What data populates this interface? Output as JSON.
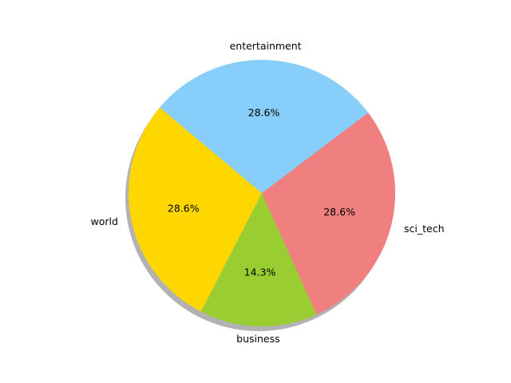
{
  "chart_data": {
    "type": "pie",
    "title": "",
    "categories": [
      "world",
      "business",
      "sci_tech",
      "entertainment"
    ],
    "values": [
      28.6,
      14.3,
      28.6,
      28.6
    ],
    "percent_labels": [
      "28.6%",
      "14.3%",
      "28.6%",
      "28.6%"
    ],
    "colors": [
      "#ffd700",
      "#9acd32",
      "#f08080",
      "#87cefa"
    ],
    "shadow": true,
    "legend": "none"
  }
}
